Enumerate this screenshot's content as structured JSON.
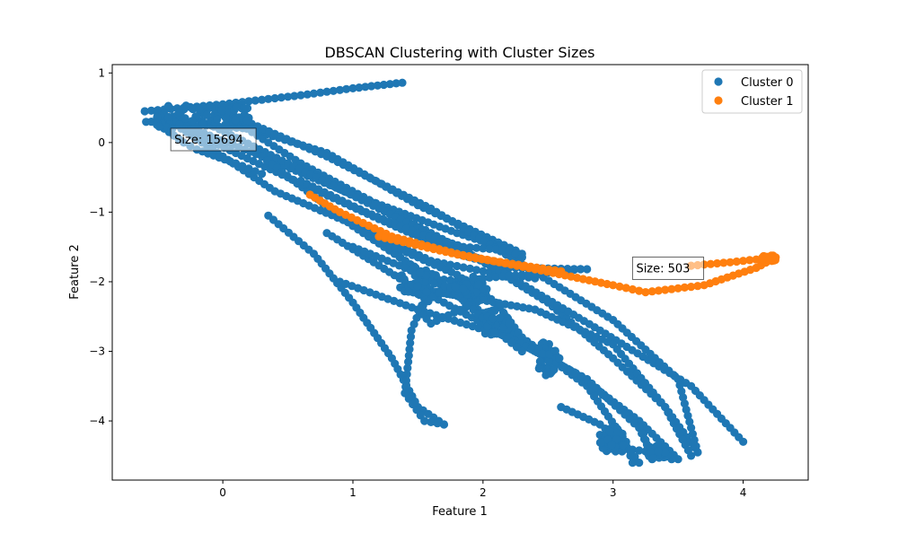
{
  "chart_data": {
    "type": "scatter",
    "title": "DBSCAN Clustering with Cluster Sizes",
    "xlabel": "Feature 1",
    "ylabel": "Feature 2",
    "xlim": [
      -0.85,
      4.5
    ],
    "ylim": [
      -4.85,
      1.12
    ],
    "xticks": [
      0,
      1,
      2,
      3,
      4
    ],
    "yticks": [
      1,
      0,
      -1,
      -2,
      -3,
      -4
    ],
    "xtick_labels": [
      "0",
      "1",
      "2",
      "3",
      "4"
    ],
    "ytick_labels": [
      "1",
      "0",
      "−1",
      "−2",
      "−3",
      "−4"
    ],
    "grid": false,
    "legend_position": "top-right",
    "series": [
      {
        "name": "Cluster 0",
        "color": "#1f77b4",
        "size_label": "Size: 15694",
        "label_anchor": [
          -0.4,
          0.05
        ],
        "paths": [
          [
            [
              -0.6,
              0.45
            ],
            [
              0.0,
              0.55
            ],
            [
              0.6,
              0.68
            ],
            [
              1.0,
              0.78
            ],
            [
              1.38,
              0.86
            ]
          ],
          [
            [
              -0.55,
              0.3
            ],
            [
              0.2,
              0.2
            ],
            [
              0.8,
              -0.15
            ],
            [
              1.5,
              -0.9
            ],
            [
              2.25,
              -1.55
            ],
            [
              2.3,
              -1.65
            ]
          ],
          [
            [
              -0.5,
              0.4
            ],
            [
              0.3,
              -0.2
            ],
            [
              1.0,
              -0.75
            ],
            [
              1.8,
              -1.3
            ],
            [
              2.3,
              -1.6
            ]
          ],
          [
            [
              -0.3,
              0.2
            ],
            [
              0.5,
              -0.5
            ],
            [
              1.2,
              -1.1
            ],
            [
              1.8,
              -1.6
            ],
            [
              2.2,
              -1.8
            ],
            [
              2.8,
              -1.82
            ]
          ],
          [
            [
              -0.4,
              0.3
            ],
            [
              0.4,
              -0.7
            ],
            [
              1.1,
              -1.25
            ],
            [
              1.6,
              -1.7
            ],
            [
              2.0,
              -1.85
            ],
            [
              2.4,
              -1.95
            ]
          ],
          [
            [
              0.1,
              0.3
            ],
            [
              0.6,
              -0.3
            ],
            [
              1.3,
              -1.0
            ],
            [
              1.9,
              -1.6
            ],
            [
              2.5,
              -2.3
            ],
            [
              3.0,
              -3.1
            ],
            [
              3.4,
              -3.8
            ],
            [
              3.65,
              -4.45
            ]
          ],
          [
            [
              -0.2,
              0.35
            ],
            [
              0.5,
              -0.3
            ],
            [
              1.2,
              -0.95
            ],
            [
              2.0,
              -1.7
            ],
            [
              2.9,
              -2.7
            ],
            [
              3.6,
              -3.5
            ],
            [
              4.0,
              -4.3
            ]
          ],
          [
            [
              0.0,
              0.45
            ],
            [
              0.8,
              -0.2
            ],
            [
              1.6,
              -0.95
            ],
            [
              2.3,
              -1.75
            ],
            [
              3.0,
              -2.55
            ],
            [
              3.5,
              -3.4
            ],
            [
              3.6,
              -4.1
            ],
            [
              3.65,
              -4.45
            ]
          ],
          [
            [
              0.3,
              -0.2
            ],
            [
              1.0,
              -1.2
            ],
            [
              1.8,
              -2.2
            ],
            [
              2.6,
              -3.2
            ],
            [
              3.2,
              -4.0
            ],
            [
              3.5,
              -4.55
            ]
          ],
          [
            [
              0.35,
              -1.05
            ],
            [
              0.7,
              -1.6
            ],
            [
              1.0,
              -2.3
            ],
            [
              1.3,
              -3.1
            ],
            [
              1.5,
              -3.8
            ],
            [
              1.7,
              -4.05
            ]
          ],
          [
            [
              0.8,
              -1.3
            ],
            [
              1.4,
              -2.0
            ],
            [
              2.0,
              -2.6
            ],
            [
              2.7,
              -3.3
            ],
            [
              3.2,
              -4.0
            ],
            [
              3.3,
              -4.55
            ]
          ],
          [
            [
              1.05,
              -1.25
            ],
            [
              1.6,
              -1.95
            ],
            [
              1.85,
              -2.0
            ],
            [
              1.55,
              -2.25
            ],
            [
              1.45,
              -2.7
            ],
            [
              1.4,
              -3.6
            ],
            [
              1.55,
              -4.0
            ],
            [
              1.7,
              -4.05
            ]
          ],
          [
            [
              1.2,
              -1.4
            ],
            [
              1.8,
              -1.9
            ],
            [
              2.1,
              -2.3
            ],
            [
              2.3,
              -2.8
            ],
            [
              2.8,
              -3.5
            ],
            [
              3.1,
              -4.3
            ],
            [
              3.15,
              -4.6
            ]
          ],
          [
            [
              0.9,
              -2.0
            ],
            [
              1.5,
              -2.4
            ],
            [
              2.2,
              -2.8
            ],
            [
              2.8,
              -3.4
            ],
            [
              3.2,
              -4.1
            ],
            [
              3.3,
              -4.5
            ]
          ],
          [
            [
              1.4,
              -2.05
            ],
            [
              1.8,
              -2.2
            ],
            [
              2.4,
              -2.4
            ],
            [
              3.0,
              -2.9
            ],
            [
              3.4,
              -3.8
            ],
            [
              3.6,
              -4.5
            ]
          ],
          [
            [
              1.45,
              -2.1
            ],
            [
              2.0,
              -2.25
            ],
            [
              1.6,
              -2.6
            ],
            [
              1.5,
              -2.4
            ],
            [
              1.7,
              -2.1
            ],
            [
              2.0,
              -1.95
            ],
            [
              2.6,
              -1.85
            ],
            [
              2.75,
              -1.82
            ]
          ],
          [
            [
              1.0,
              -1.5
            ],
            [
              1.4,
              -1.8
            ],
            [
              1.75,
              -2.1
            ],
            [
              2.1,
              -2.7
            ],
            [
              2.3,
              -3.0
            ]
          ],
          [
            [
              0.6,
              -0.55
            ],
            [
              1.1,
              -1.0
            ],
            [
              1.5,
              -1.3
            ],
            [
              1.85,
              -1.5
            ],
            [
              2.2,
              -1.55
            ],
            [
              2.3,
              -1.65
            ]
          ],
          [
            [
              2.9,
              -4.2
            ],
            [
              3.1,
              -4.4
            ],
            [
              3.3,
              -4.45
            ],
            [
              3.45,
              -4.55
            ]
          ],
          [
            [
              2.6,
              -3.8
            ],
            [
              2.9,
              -4.05
            ],
            [
              3.1,
              -4.35
            ],
            [
              3.2,
              -4.6
            ]
          ],
          [
            [
              -0.45,
              0.2
            ],
            [
              -0.3,
              0.0
            ],
            [
              -0.2,
              -0.1
            ],
            [
              0.1,
              -0.3
            ],
            [
              0.3,
              -0.45
            ]
          ],
          [
            [
              -0.1,
              0.5
            ],
            [
              0.05,
              0.4
            ],
            [
              0.15,
              0.3
            ],
            [
              0.25,
              0.15
            ]
          ]
        ],
        "blobs": [
          [
            -0.35,
            0.35,
            0.25,
            0.2
          ],
          [
            0.05,
            0.4,
            0.18,
            0.15
          ],
          [
            1.5,
            -2.0,
            0.15,
            0.25
          ],
          [
            1.9,
            -2.05,
            0.15,
            0.15
          ],
          [
            3.0,
            -4.3,
            0.1,
            0.2
          ],
          [
            3.35,
            -4.45,
            0.1,
            0.1
          ],
          [
            2.1,
            -2.6,
            0.12,
            0.2
          ],
          [
            2.5,
            -3.1,
            0.1,
            0.25
          ]
        ]
      },
      {
        "name": "Cluster 1",
        "color": "#ff7f0e",
        "size_label": "Size: 503",
        "label_anchor": [
          3.15,
          -1.8
        ],
        "paths": [
          [
            [
              0.67,
              -0.75
            ],
            [
              0.9,
              -1.0
            ],
            [
              1.3,
              -1.35
            ],
            [
              1.8,
              -1.6
            ],
            [
              2.4,
              -1.82
            ],
            [
              3.0,
              -2.05
            ],
            [
              3.25,
              -2.15
            ],
            [
              3.7,
              -2.05
            ],
            [
              4.1,
              -1.8
            ],
            [
              4.25,
              -1.65
            ]
          ],
          [
            [
              1.2,
              -1.35
            ],
            [
              1.9,
              -1.65
            ],
            [
              2.6,
              -1.85
            ]
          ],
          [
            [
              3.6,
              -1.77
            ],
            [
              3.9,
              -1.72
            ],
            [
              4.2,
              -1.66
            ]
          ]
        ],
        "blobs": [
          [
            4.2,
            -1.66,
            0.06,
            0.05
          ]
        ]
      }
    ]
  }
}
